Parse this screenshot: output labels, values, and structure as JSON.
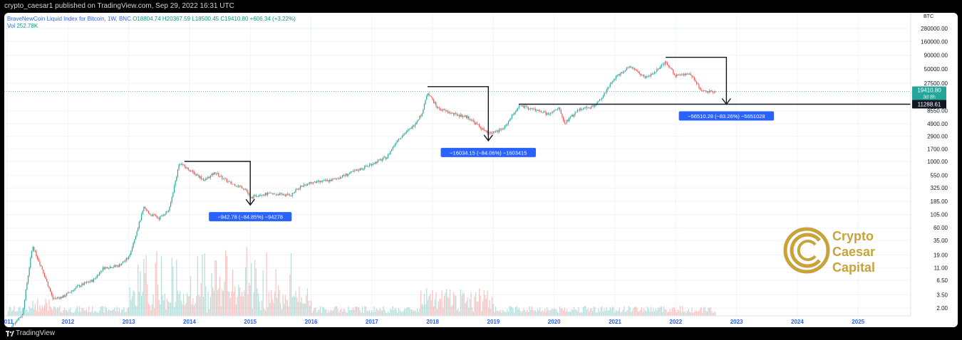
{
  "header": {
    "published_text": "crypto_caesar1 published on TradingView.com, Sep 29, 2022 16:31 UTC"
  },
  "legend": {
    "symbol": "BraveNewCoin Liquid Index for Bitcoin, 1W, BNC",
    "ohlc": "O18804.74  H20367.59  L18500.45  C19410.80  +606.34 (+3.22%)",
    "volume_label": "Vol",
    "volume_value": "252.78K"
  },
  "footer": {
    "brand": "TradingView"
  },
  "logo": {
    "line1": "Crypto",
    "line2": "Caesar",
    "line3": "Capital",
    "color": "#c9a23a"
  },
  "chart_data": {
    "type": "line",
    "scale": "log",
    "currency_label": "BTC",
    "x_ticks": [
      "2011",
      "2012",
      "2013",
      "2014",
      "2015",
      "2016",
      "2017",
      "2018",
      "2019",
      "2020",
      "2021",
      "2022",
      "2023",
      "2024",
      "2025"
    ],
    "y_ticks": [
      "280000.00",
      "160000.00",
      "90000.00",
      "50000.00",
      "27500.00",
      "8550.00",
      "4900.00",
      "2900.00",
      "1700.00",
      "1000.00",
      "550.00",
      "325.00",
      "185.00",
      "105.00",
      "60.00",
      "35.00",
      "19.00",
      "11.00",
      "6.50",
      "3.50",
      "2.00"
    ],
    "price_badge": {
      "value": "19410.80",
      "sub": "3d 8h"
    },
    "level_badge": {
      "value": "11288.61"
    },
    "x": [
      "2011-01",
      "2011-02",
      "2011-04",
      "2011-06",
      "2011-08",
      "2011-10",
      "2011-12",
      "2012-03",
      "2012-06",
      "2012-08",
      "2012-11",
      "2013-01",
      "2013-03",
      "2013-04",
      "2013-05",
      "2013-07",
      "2013-09",
      "2013-11",
      "2013-12",
      "2014-02",
      "2014-04",
      "2014-06",
      "2014-09",
      "2014-12",
      "2015-01",
      "2015-03",
      "2015-06",
      "2015-09",
      "2015-11",
      "2016-01",
      "2016-05",
      "2016-08",
      "2016-11",
      "2017-01",
      "2017-04",
      "2017-06",
      "2017-09",
      "2017-11",
      "2017-12",
      "2018-02",
      "2018-05",
      "2018-08",
      "2018-11",
      "2018-12",
      "2019-03",
      "2019-06",
      "2019-09",
      "2019-12",
      "2020-02",
      "2020-03",
      "2020-06",
      "2020-09",
      "2020-11",
      "2021-01",
      "2021-04",
      "2021-07",
      "2021-09",
      "2021-11",
      "2022-01",
      "2022-04",
      "2022-06",
      "2022-09"
    ],
    "close": [
      0.3,
      1,
      1.5,
      28,
      10,
      3,
      3.2,
      5,
      6.5,
      11,
      12,
      17,
      70,
      140,
      110,
      90,
      130,
      950,
      800,
      600,
      450,
      620,
      400,
      320,
      210,
      250,
      250,
      240,
      350,
      400,
      450,
      570,
      740,
      900,
      1200,
      2500,
      4300,
      8000,
      19000,
      9500,
      7500,
      6500,
      3800,
      3200,
      4000,
      10500,
      9000,
      7300,
      9500,
      5000,
      9300,
      10500,
      18000,
      35000,
      58000,
      34000,
      45000,
      66000,
      38000,
      40000,
      20000,
      19410.8
    ],
    "volume_peak_years": [
      "2013",
      "2014",
      "2015",
      "2018"
    ],
    "drawdowns": [
      {
        "label": "−942.78 (−84.85%) −94278",
        "from": "2013-12",
        "to": "2015-01"
      },
      {
        "label": "−16034.15 (−84.06%) −1603415",
        "from": "2017-12",
        "to": "2018-12"
      },
      {
        "label": "−56510.28 (−83.26%) −5651028",
        "from": "2021-11",
        "to": "2022-11"
      }
    ],
    "horizontal_level": 11288.61,
    "colors": {
      "up": "#26a69a",
      "down": "#ef5350",
      "badge": "#2962ff",
      "axis_text": "#2962ff"
    }
  }
}
